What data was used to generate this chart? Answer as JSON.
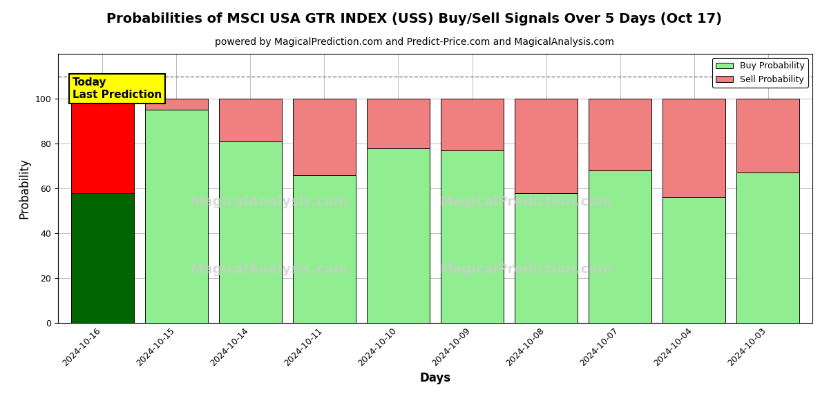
{
  "title": "Probabilities of MSCI USA GTR INDEX (USS) Buy/Sell Signals Over 5 Days (Oct 17)",
  "subtitle": "powered by MagicalPrediction.com and Predict-Price.com and MagicalAnalysis.com",
  "xlabel": "Days",
  "ylabel": "Probability",
  "dates": [
    "2024-10-16",
    "2024-10-15",
    "2024-10-14",
    "2024-10-11",
    "2024-10-10",
    "2024-10-09",
    "2024-10-08",
    "2024-10-07",
    "2024-10-04",
    "2024-10-03"
  ],
  "buy_values": [
    58,
    95,
    81,
    66,
    78,
    77,
    58,
    68,
    56,
    67
  ],
  "sell_values": [
    42,
    5,
    19,
    34,
    22,
    23,
    42,
    32,
    44,
    33
  ],
  "buy_color_today": "#006400",
  "sell_color_today": "#FF0000",
  "buy_color_normal": "#90EE90",
  "sell_color_normal": "#F08080",
  "today_box_color": "#FFFF00",
  "today_box_text": "Today\nLast Prediction",
  "dashed_line_y": 110,
  "ylim": [
    0,
    120
  ],
  "yticks": [
    0,
    20,
    40,
    60,
    80,
    100
  ],
  "legend_buy_label": "Buy Probability",
  "legend_sell_label": "Sell Probability",
  "bar_width": 0.85,
  "title_fontsize": 14,
  "subtitle_fontsize": 10,
  "axis_label_fontsize": 12,
  "tick_fontsize": 9,
  "background_color": "#ffffff",
  "grid_color": "#bbbbbb"
}
